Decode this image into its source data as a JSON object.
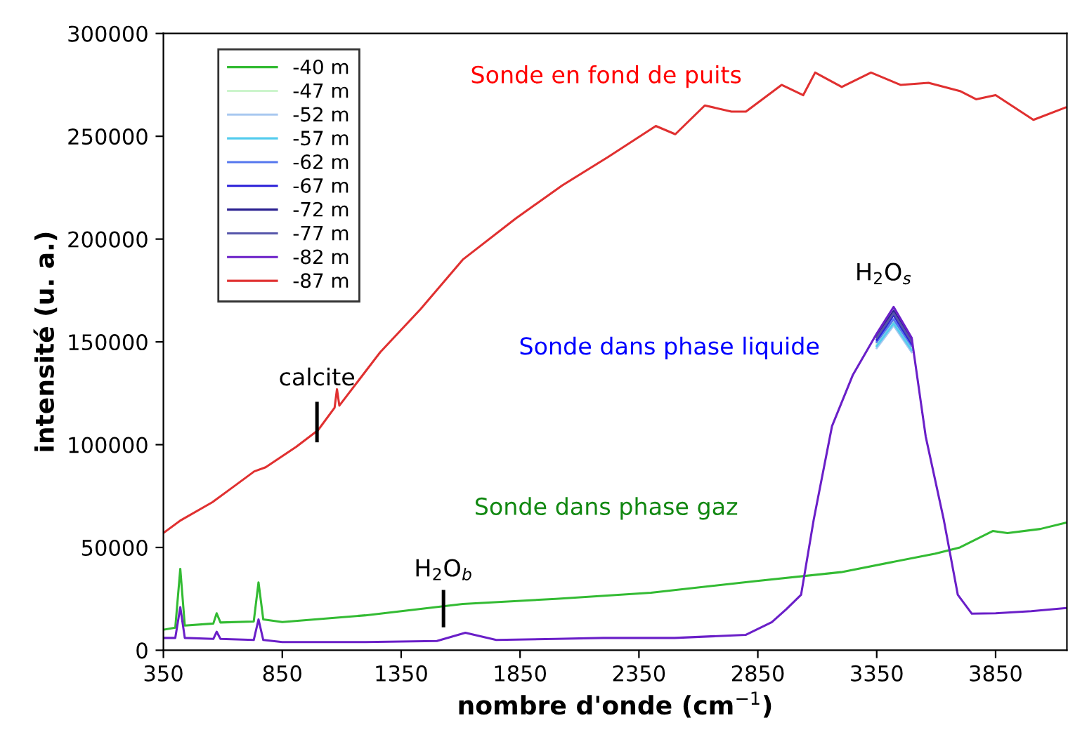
{
  "chart_data": {
    "type": "line",
    "xlabel": "nombre d'onde (cm$^{−1}$)",
    "ylabel": "intensité (u. a.)",
    "xlim": [
      350,
      4150
    ],
    "xticks": [
      350,
      850,
      1350,
      1850,
      2350,
      2850,
      3350,
      3850
    ],
    "ylim": [
      0,
      300000
    ],
    "yticks": [
      0,
      50000,
      100000,
      150000,
      200000,
      250000,
      300000
    ],
    "grid": false,
    "legend": "top left",
    "marker": "none",
    "line_style": "solid",
    "series": [
      {
        "name": "-40 m",
        "color": "#33bb33",
        "x": [
          350,
          400,
          421,
          440,
          560,
          574,
          590,
          730,
          750,
          770,
          850,
          1200,
          1609,
          2000,
          2400,
          2832,
          3200,
          3597,
          3700,
          3838,
          3900,
          4038,
          4144
        ],
        "values": [
          10000,
          11000,
          39600,
          12000,
          13000,
          18000,
          13500,
          14000,
          33000,
          15000,
          13700,
          17000,
          22500,
          25000,
          28000,
          33500,
          38000,
          47000,
          50000,
          58000,
          57000,
          59000,
          62000
        ]
      },
      {
        "name": "-47 m",
        "color": "#ccf5cc",
        "x": [
          3350,
          3421,
          3497
        ],
        "values": [
          149000,
          160000,
          147000
        ]
      },
      {
        "name": "-52 m",
        "color": "#a8c8f0",
        "x": [
          3350,
          3421,
          3497
        ],
        "values": [
          147000,
          158000,
          145000
        ]
      },
      {
        "name": "-57 m",
        "color": "#55ccee",
        "x": [
          3350,
          3421,
          3497
        ],
        "values": [
          148000,
          159000,
          146000
        ]
      },
      {
        "name": "-62 m",
        "color": "#5577ee",
        "x": [
          3350,
          3421,
          3497
        ],
        "values": [
          150000,
          161000,
          148000
        ]
      },
      {
        "name": "-67 m",
        "color": "#2a1fd8",
        "x": [
          3350,
          3421,
          3497
        ],
        "values": [
          151000,
          163000,
          149000
        ]
      },
      {
        "name": "-72 m",
        "color": "#2a2090",
        "x": [
          3350,
          3421,
          3497
        ],
        "values": [
          153000,
          165000,
          151000
        ]
      },
      {
        "name": "-77 m",
        "color": "#5555aa",
        "x": [
          3350,
          3421,
          3497
        ],
        "values": [
          152000,
          164000,
          150000
        ]
      },
      {
        "name": "-82 m",
        "color": "#6a1fc8",
        "x": [
          350,
          400,
          421,
          440,
          560,
          574,
          590,
          730,
          750,
          770,
          850,
          1200,
          1500,
          1620,
          1750,
          2000,
          2200,
          2500,
          2800,
          2909,
          2970,
          3032,
          3085,
          3162,
          3250,
          3350,
          3421,
          3497,
          3556,
          3632,
          3691,
          3750,
          3850,
          4000,
          4144
        ],
        "values": [
          6000,
          6000,
          21000,
          6000,
          5500,
          9000,
          5500,
          5000,
          15000,
          5000,
          4000,
          4000,
          4500,
          8500,
          5000,
          5500,
          6000,
          6000,
          7500,
          13700,
          20000,
          27000,
          63500,
          109000,
          134000,
          154000,
          167000,
          152000,
          104000,
          63500,
          27000,
          17800,
          18000,
          19000,
          20500
        ]
      },
      {
        "name": "-87 m",
        "color": "#e03030",
        "x": [
          350,
          420,
          556,
          650,
          732,
          780,
          909,
          1000,
          1070,
          1080,
          1090,
          1262,
          1432,
          1609,
          1832,
          2026,
          2221,
          2421,
          2503,
          2627,
          2739,
          2800,
          2950,
          3041,
          3091,
          3203,
          3326,
          3450,
          3568,
          3700,
          3768,
          3850,
          4009,
          4144
        ],
        "values": [
          57000,
          63000,
          72000,
          80000,
          87000,
          89000,
          99000,
          107000,
          118000,
          127000,
          119000,
          145000,
          166000,
          190000,
          210000,
          226000,
          240000,
          255000,
          251000,
          265000,
          262000,
          262000,
          275000,
          270000,
          281000,
          274000,
          281000,
          275000,
          276000,
          272000,
          268000,
          270000,
          258000,
          264000
        ]
      }
    ],
    "annotations": [
      "Sonde en fond de puits",
      "Sonde dans phase liquide",
      "Sonde dans phase gaz",
      "calcite",
      "H$_{2}$O$_{b}$",
      "H$_{2}$O$_{s}$"
    ]
  }
}
